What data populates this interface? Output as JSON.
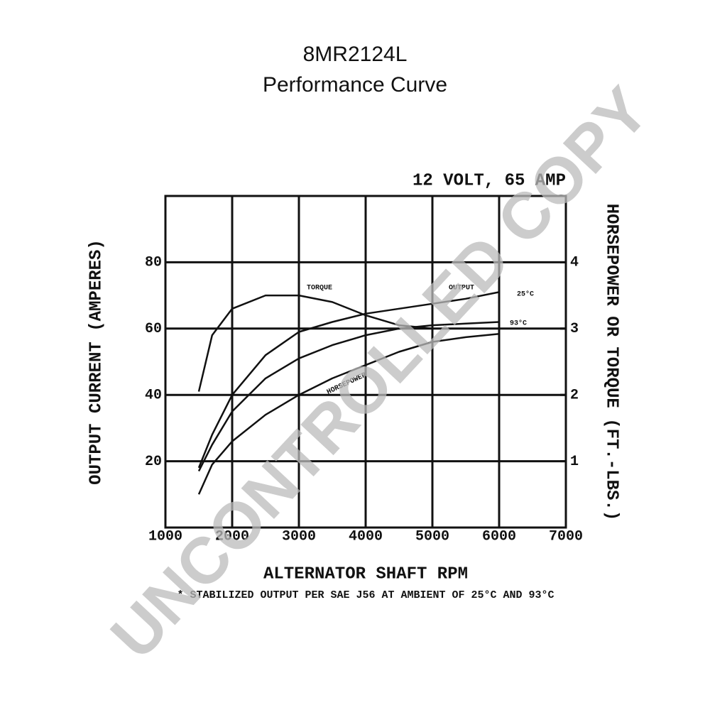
{
  "chart_data": {
    "type": "line",
    "title": "8MR2124L",
    "subtitle": "Performance Curve",
    "rating": "12 VOLT, 65 AMP",
    "x_label": "ALTERNATOR SHAFT RPM",
    "y_label": "OUTPUT CURRENT (AMPERES)",
    "y2_label": "HORSEPOWER OR TORQUE (FT.-LBS.)",
    "footnote": "* STABILIZED OUTPUT PER SAE J56 AT AMBIENT OF 25°C AND 93°C",
    "annotation": "OUTPUT",
    "watermark": "UNCONTROLLED COPY",
    "x": [
      1500,
      1700,
      2000,
      2500,
      3000,
      3500,
      4000,
      4500,
      5000,
      5500,
      6000
    ],
    "series": [
      {
        "name": "TORQUE",
        "color": "#111111",
        "axis": "y2",
        "values": [
          2.05,
          2.9,
          3.3,
          3.5,
          3.5,
          3.4,
          3.2,
          3.05,
          3.0,
          3.0,
          3.0
        ]
      },
      {
        "name": "25°C",
        "color": "#111111",
        "values": [
          18,
          28,
          40,
          52,
          59,
          62,
          64.5,
          66,
          67.5,
          69,
          71
        ]
      },
      {
        "name": "93°C",
        "color": "#111111",
        "values": [
          17,
          25,
          35,
          45,
          51,
          55,
          58,
          60,
          61,
          61.5,
          62
        ]
      },
      {
        "name": "HORSEPOWER",
        "color": "#111111",
        "axis": "y2",
        "values": [
          0.5,
          0.95,
          1.3,
          1.7,
          2.0,
          2.25,
          2.45,
          2.65,
          2.8,
          2.87,
          2.92
        ]
      }
    ],
    "xlim": [
      1000,
      7000
    ],
    "xticks": [
      1000,
      2000,
      3000,
      4000,
      5000,
      6000,
      7000
    ],
    "ylim": [
      0,
      100
    ],
    "yticks": [
      20,
      40,
      60,
      80
    ],
    "y2lim": [
      0,
      5
    ],
    "y2ticks": [
      1,
      2,
      3,
      4
    ],
    "grid": true
  }
}
